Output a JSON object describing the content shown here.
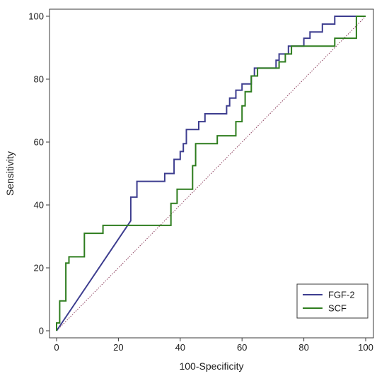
{
  "chart_data": {
    "type": "line",
    "xlabel": "100-Specificity",
    "ylabel": "Sensitivity",
    "xlim": [
      0,
      100
    ],
    "ylim": [
      0,
      100
    ],
    "xticks": [
      0,
      20,
      40,
      60,
      80,
      100
    ],
    "yticks": [
      0,
      20,
      40,
      60,
      80,
      100
    ],
    "grid": false,
    "legend_position": "bottom-right",
    "reference_line": {
      "from": [
        0,
        0
      ],
      "to": [
        100,
        100
      ],
      "style": "dotted",
      "color": "#8a3b5a"
    },
    "series": [
      {
        "name": "FGF-2",
        "color": "#3d3d8f",
        "points": [
          [
            0,
            0
          ],
          [
            24,
            35
          ],
          [
            24,
            38
          ],
          [
            24,
            42.5
          ],
          [
            26,
            42.5
          ],
          [
            26,
            47.5
          ],
          [
            35,
            47.5
          ],
          [
            35,
            50
          ],
          [
            38,
            50
          ],
          [
            38,
            54.5
          ],
          [
            40,
            54.5
          ],
          [
            40,
            57
          ],
          [
            41,
            57
          ],
          [
            41,
            59.5
          ],
          [
            42,
            59.5
          ],
          [
            42,
            64
          ],
          [
            46,
            64
          ],
          [
            46,
            66.5
          ],
          [
            48,
            66.5
          ],
          [
            48,
            69
          ],
          [
            55,
            69
          ],
          [
            55,
            71.5
          ],
          [
            56,
            71.5
          ],
          [
            56,
            74
          ],
          [
            58,
            74
          ],
          [
            58,
            76.5
          ],
          [
            60,
            76.5
          ],
          [
            60,
            78.5
          ],
          [
            63,
            78.5
          ],
          [
            63,
            81
          ],
          [
            64,
            81
          ],
          [
            64,
            83.5
          ],
          [
            71,
            83.5
          ],
          [
            71,
            86
          ],
          [
            72,
            86
          ],
          [
            72,
            88
          ],
          [
            75,
            88
          ],
          [
            75,
            90.5
          ],
          [
            80,
            90.5
          ],
          [
            80,
            93
          ],
          [
            82,
            93
          ],
          [
            82,
            95
          ],
          [
            86,
            95
          ],
          [
            86,
            97.5
          ],
          [
            90,
            97.5
          ],
          [
            90,
            100
          ],
          [
            100,
            100
          ]
        ]
      },
      {
        "name": "SCF",
        "color": "#2e7d1e",
        "points": [
          [
            0,
            0
          ],
          [
            0,
            2.5
          ],
          [
            1,
            2.5
          ],
          [
            1,
            9.5
          ],
          [
            3,
            9.5
          ],
          [
            3,
            21.5
          ],
          [
            4,
            21.5
          ],
          [
            4,
            23.5
          ],
          [
            9,
            23.5
          ],
          [
            9,
            31
          ],
          [
            15,
            31
          ],
          [
            15,
            33.5
          ],
          [
            37,
            33.5
          ],
          [
            37,
            40.5
          ],
          [
            39,
            40.5
          ],
          [
            39,
            45
          ],
          [
            44,
            45
          ],
          [
            44,
            52.5
          ],
          [
            45,
            52.5
          ],
          [
            45,
            59.5
          ],
          [
            52,
            59.5
          ],
          [
            52,
            62
          ],
          [
            58,
            62
          ],
          [
            58,
            66.5
          ],
          [
            60,
            66.5
          ],
          [
            60,
            71.5
          ],
          [
            61,
            71.5
          ],
          [
            61,
            76
          ],
          [
            63,
            76
          ],
          [
            63,
            81
          ],
          [
            65,
            81
          ],
          [
            65,
            83.5
          ],
          [
            72,
            83.5
          ],
          [
            72,
            85.5
          ],
          [
            74,
            85.5
          ],
          [
            74,
            88
          ],
          [
            76,
            88
          ],
          [
            76,
            90.5
          ],
          [
            90,
            90.5
          ],
          [
            90,
            93
          ],
          [
            97,
            93
          ],
          [
            97,
            100
          ],
          [
            100,
            100
          ]
        ]
      }
    ]
  }
}
